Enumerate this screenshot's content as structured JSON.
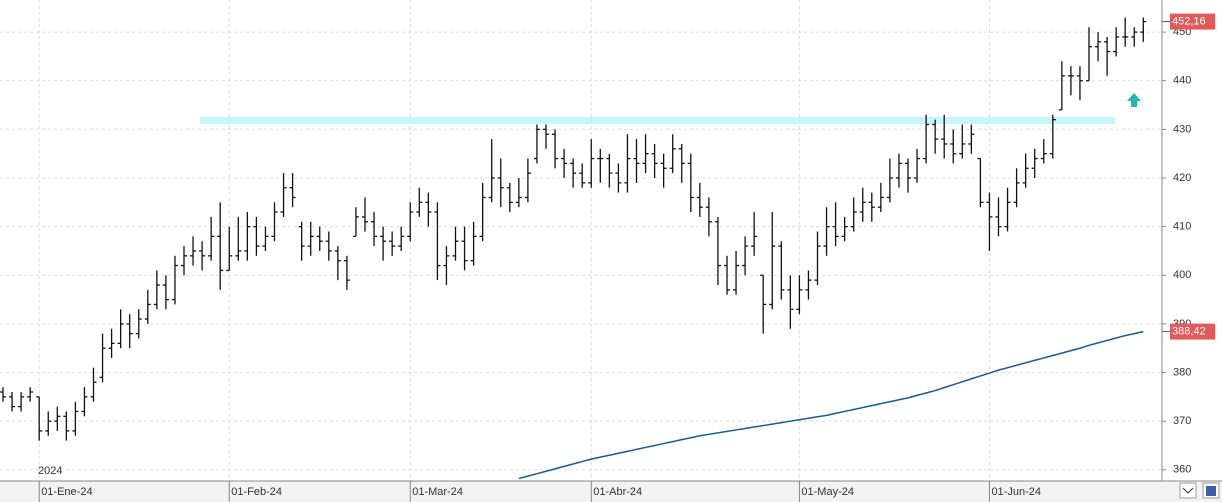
{
  "chart_data": {
    "type": "ohlc",
    "year": "2024",
    "categories": [
      null,
      null,
      null,
      null,
      "01-Ene-24",
      null,
      null,
      null,
      null,
      null,
      null,
      null,
      null,
      null,
      null,
      null,
      null,
      null,
      null,
      null,
      null,
      null,
      null,
      null,
      null,
      "01-Feb-24",
      null,
      null,
      null,
      null,
      null,
      null,
      null,
      null,
      null,
      null,
      null,
      null,
      null,
      null,
      null,
      null,
      null,
      null,
      null,
      "01-Mar-24",
      null,
      null,
      null,
      null,
      null,
      null,
      null,
      null,
      null,
      null,
      null,
      null,
      null,
      null,
      null,
      null,
      null,
      null,
      null,
      "01-Abr-24",
      null,
      null,
      null,
      null,
      null,
      null,
      null,
      null,
      null,
      null,
      null,
      null,
      null,
      null,
      null,
      null,
      null,
      null,
      null,
      null,
      null,
      null,
      "01-May-24",
      null,
      null,
      null,
      null,
      null,
      null,
      null,
      null,
      null,
      null,
      null,
      null,
      null,
      null,
      null,
      null,
      null,
      null,
      null,
      null,
      "01-Jun-24",
      null,
      null,
      null,
      null,
      null,
      null,
      null,
      null,
      null,
      null,
      null,
      null,
      null,
      null,
      null,
      null,
      null
    ],
    "ohlc": [
      [
        376,
        377,
        374,
        375
      ],
      [
        375,
        376,
        372,
        373
      ],
      [
        373,
        376,
        372,
        375
      ],
      [
        375,
        377,
        374,
        376
      ],
      [
        375,
        375,
        366,
        368
      ],
      [
        368,
        372,
        367,
        370
      ],
      [
        370,
        373,
        368,
        371
      ],
      [
        371,
        372,
        366,
        368
      ],
      [
        368,
        374,
        367,
        372
      ],
      [
        372,
        377,
        371,
        375
      ],
      [
        375,
        381,
        374,
        378
      ],
      [
        379,
        388,
        378,
        385
      ],
      [
        385,
        389,
        383,
        386
      ],
      [
        386,
        393,
        385,
        390
      ],
      [
        390,
        392,
        385,
        388
      ],
      [
        388,
        393,
        387,
        391
      ],
      [
        391,
        397,
        390,
        394
      ],
      [
        394,
        401,
        393,
        398
      ],
      [
        398,
        400,
        393,
        395
      ],
      [
        395,
        404,
        394,
        402
      ],
      [
        402,
        406,
        400,
        404
      ],
      [
        404,
        408,
        402,
        405
      ],
      [
        405,
        407,
        401,
        404
      ],
      [
        404,
        412,
        403,
        408
      ],
      [
        408,
        415,
        397,
        401
      ],
      [
        401,
        410,
        401,
        404
      ],
      [
        404,
        412,
        403,
        405
      ],
      [
        405,
        413,
        403,
        410
      ],
      [
        410,
        412,
        404,
        406
      ],
      [
        406,
        410,
        405,
        408
      ],
      [
        408,
        415,
        407,
        413
      ],
      [
        413,
        421,
        412,
        418
      ],
      [
        418,
        421,
        414,
        416
      ],
      [
        410,
        411,
        403,
        406
      ],
      [
        406,
        411,
        404,
        408
      ],
      [
        408,
        410,
        405,
        407
      ],
      [
        407,
        409,
        403,
        405
      ],
      [
        405,
        406,
        399,
        403
      ],
      [
        403,
        404,
        397,
        399
      ],
      [
        408,
        414,
        408,
        412
      ],
      [
        412,
        416,
        409,
        411
      ],
      [
        411,
        413,
        406,
        408
      ],
      [
        408,
        410,
        403,
        407
      ],
      [
        407,
        409,
        404,
        406
      ],
      [
        406,
        410,
        405,
        408
      ],
      [
        408,
        415,
        407,
        413
      ],
      [
        413,
        418,
        412,
        415
      ],
      [
        415,
        417,
        410,
        413
      ],
      [
        413,
        415,
        399,
        402
      ],
      [
        402,
        406,
        398,
        404
      ],
      [
        404,
        410,
        403,
        407
      ],
      [
        407,
        410,
        401,
        403
      ],
      [
        403,
        411,
        402,
        408
      ],
      [
        408,
        419,
        407,
        416
      ],
      [
        416,
        428,
        415,
        420
      ],
      [
        420,
        424,
        414,
        418
      ],
      [
        418,
        419,
        413,
        415
      ],
      [
        415,
        420,
        414,
        416
      ],
      [
        416,
        424,
        415,
        421
      ],
      [
        424,
        431,
        423,
        430
      ],
      [
        430,
        431,
        426,
        429
      ],
      [
        429,
        430,
        422,
        424
      ],
      [
        424,
        426,
        420,
        423
      ],
      [
        423,
        424,
        418,
        421
      ],
      [
        421,
        423,
        418,
        419
      ],
      [
        419,
        428,
        418,
        424
      ],
      [
        424,
        426,
        419,
        424
      ],
      [
        424,
        425,
        418,
        421
      ],
      [
        421,
        423,
        417,
        419
      ],
      [
        419,
        429,
        417,
        424
      ],
      [
        424,
        428,
        419,
        423
      ],
      [
        423,
        429,
        421,
        425
      ],
      [
        425,
        427,
        420,
        423
      ],
      [
        423,
        425,
        418,
        422
      ],
      [
        422,
        429,
        421,
        426
      ],
      [
        426,
        427,
        419,
        423
      ],
      [
        423,
        425,
        413,
        416
      ],
      [
        416,
        419,
        412,
        414
      ],
      [
        414,
        416,
        408,
        411
      ],
      [
        411,
        412,
        398,
        402
      ],
      [
        402,
        404,
        396,
        397
      ],
      [
        397,
        405,
        396,
        402
      ],
      [
        402,
        408,
        400,
        406
      ],
      [
        406,
        413,
        404,
        408
      ],
      [
        400,
        400,
        388,
        394
      ],
      [
        394,
        413,
        393,
        406
      ],
      [
        406,
        407,
        395,
        397
      ],
      [
        397,
        400,
        389,
        393
      ],
      [
        393,
        400,
        392,
        397
      ],
      [
        397,
        401,
        395,
        399
      ],
      [
        399,
        409,
        398,
        406
      ],
      [
        406,
        414,
        404,
        410
      ],
      [
        410,
        415,
        406,
        408
      ],
      [
        408,
        412,
        407,
        410
      ],
      [
        410,
        416,
        409,
        413
      ],
      [
        413,
        418,
        411,
        415
      ],
      [
        415,
        417,
        411,
        414
      ],
      [
        414,
        419,
        413,
        416
      ],
      [
        416,
        424,
        415,
        420
      ],
      [
        420,
        425,
        418,
        423
      ],
      [
        423,
        424,
        417,
        420
      ],
      [
        420,
        426,
        419,
        424
      ],
      [
        424,
        433,
        423,
        431
      ],
      [
        431,
        432,
        425,
        428
      ],
      [
        428,
        433,
        424,
        427
      ],
      [
        427,
        430,
        423,
        425
      ],
      [
        425,
        431,
        424,
        427
      ],
      [
        427,
        431,
        425,
        429
      ],
      [
        424,
        424,
        414,
        415
      ],
      [
        415,
        417,
        405,
        412
      ],
      [
        412,
        416,
        408,
        410
      ],
      [
        410,
        418,
        409,
        415
      ],
      [
        415,
        422,
        414,
        419
      ],
      [
        419,
        425,
        418,
        422
      ],
      [
        422,
        426,
        420,
        424
      ],
      [
        424,
        428,
        423,
        425
      ],
      [
        425,
        433,
        424,
        432
      ],
      [
        434,
        444,
        434,
        441
      ],
      [
        441,
        443,
        437,
        441
      ],
      [
        441,
        443,
        436,
        440
      ],
      [
        440,
        451,
        440,
        447
      ],
      [
        447,
        450,
        444,
        448
      ],
      [
        448,
        449,
        441,
        446
      ],
      [
        446,
        451,
        445,
        449
      ],
      [
        449,
        453,
        447,
        449
      ],
      [
        449,
        451,
        447,
        450
      ],
      [
        450,
        453,
        448,
        452.16
      ]
    ],
    "bar_color": "#111111",
    "ma": {
      "color": "#1b5a8f",
      "values": [
        null,
        null,
        null,
        null,
        null,
        null,
        null,
        null,
        null,
        null,
        null,
        null,
        null,
        null,
        null,
        null,
        null,
        null,
        null,
        null,
        null,
        null,
        null,
        null,
        null,
        null,
        null,
        null,
        null,
        null,
        null,
        null,
        null,
        null,
        null,
        null,
        null,
        null,
        null,
        null,
        null,
        null,
        null,
        null,
        null,
        null,
        null,
        null,
        null,
        null,
        null,
        null,
        null,
        null,
        null,
        null,
        null,
        358.2,
        358.7,
        359.2,
        359.7,
        360.2,
        360.7,
        361.2,
        361.7,
        362.2,
        362.6,
        363.0,
        363.4,
        363.8,
        364.2,
        364.6,
        365.0,
        365.4,
        365.8,
        366.2,
        366.6,
        367.0,
        367.3,
        367.6,
        367.9,
        368.2,
        368.5,
        368.8,
        369.1,
        369.4,
        369.7,
        370.0,
        370.3,
        370.6,
        370.9,
        371.2,
        371.6,
        372.0,
        372.4,
        372.8,
        373.2,
        373.6,
        374.0,
        374.4,
        374.8,
        375.3,
        375.8,
        376.3,
        376.9,
        377.5,
        378.1,
        378.7,
        379.3,
        379.9,
        380.5,
        381.0,
        381.5,
        382.0,
        382.5,
        383.0,
        383.5,
        384.0,
        384.5,
        385.0,
        385.6,
        386.1,
        386.6,
        387.1,
        387.6,
        388.0,
        388.42
      ]
    },
    "last_labels": [
      {
        "value": 452.16,
        "label": "452,16"
      },
      {
        "value": 388.42,
        "label": "388,42"
      }
    ],
    "last_label_color": "#e05a5a",
    "ylim": [
      357.7,
      456.6
    ],
    "yticks": [
      360,
      370,
      380,
      390,
      400,
      410,
      420,
      430,
      440,
      450
    ],
    "grid": true
  }
}
